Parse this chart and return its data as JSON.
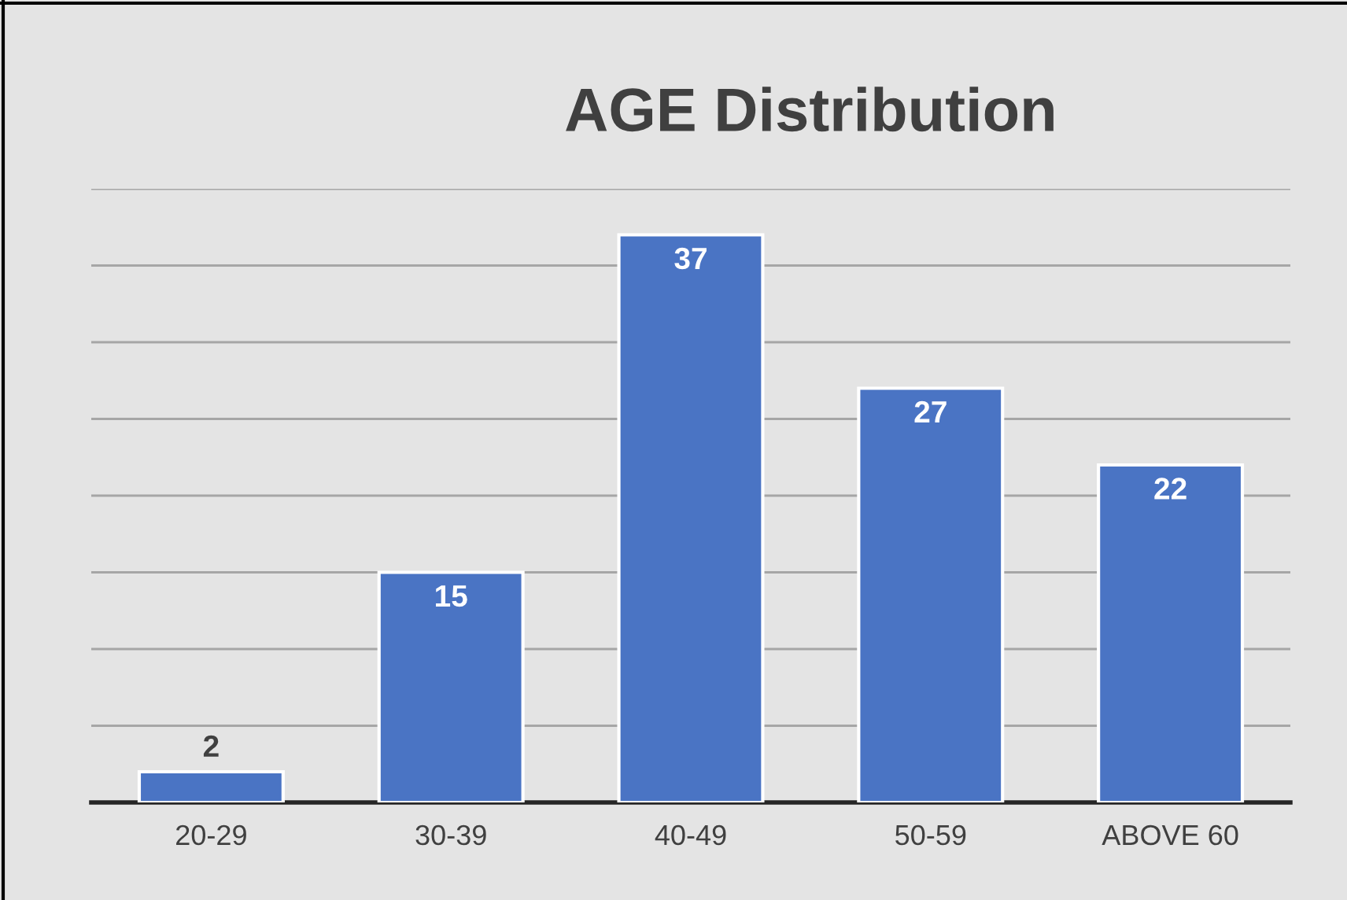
{
  "chart_data": {
    "type": "bar",
    "title": "AGE Distribution",
    "categories": [
      "20-29",
      "30-39",
      "40-49",
      "50-59",
      "ABOVE 60"
    ],
    "values": [
      2,
      15,
      37,
      27,
      22
    ],
    "color": "#4a74c4",
    "ylim": [
      0,
      40
    ],
    "yticks": [
      {
        "value": 0,
        "label": null
      },
      {
        "value": 5,
        "label": null
      },
      {
        "value": 10,
        "label": null
      },
      {
        "value": 15,
        "label": null
      },
      {
        "value": 20,
        "label": null
      },
      {
        "value": 25,
        "label": null
      },
      {
        "value": 30,
        "label": null
      },
      {
        "value": 35,
        "label": null
      },
      {
        "value": 40,
        "label": null
      }
    ],
    "tick_labels": "x",
    "grid": "y",
    "data_labels": true
  }
}
